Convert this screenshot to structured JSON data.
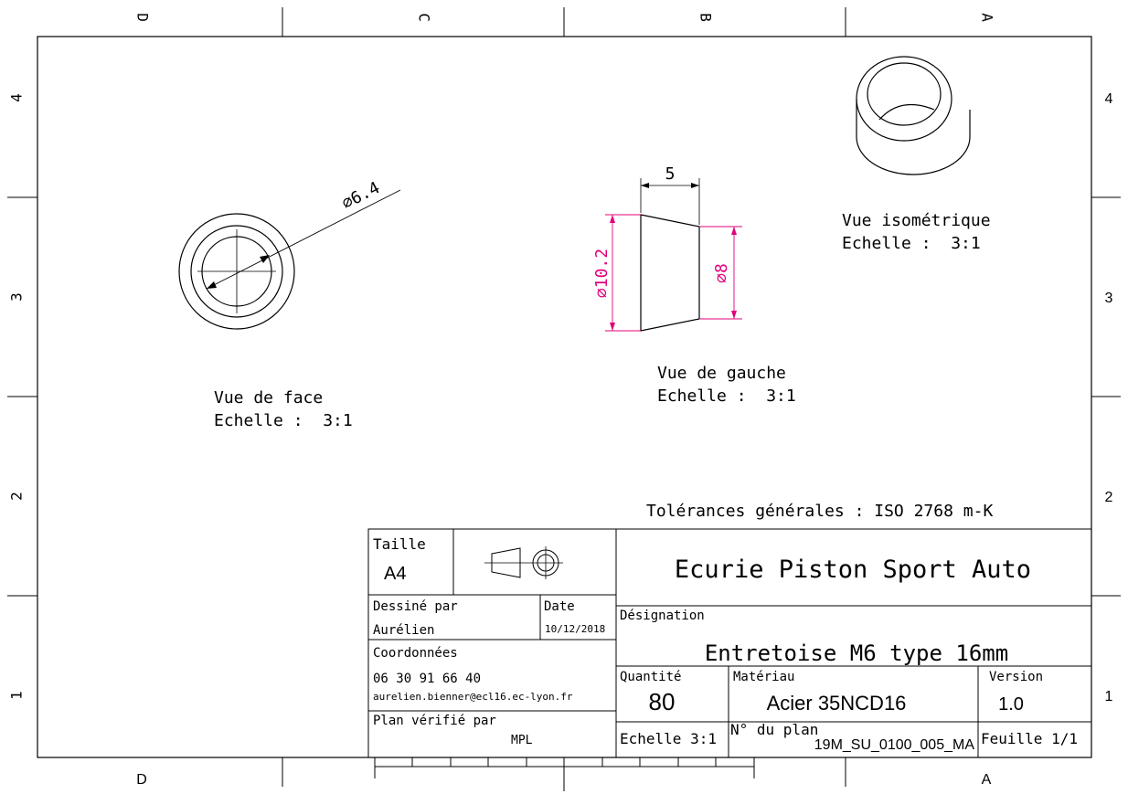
{
  "zones": {
    "top": [
      "D",
      "C",
      "B",
      "A"
    ],
    "bottom": [
      "D",
      "A"
    ],
    "left": [
      "4",
      "3",
      "2",
      "1"
    ],
    "right": [
      "4",
      "3",
      "2",
      "1"
    ]
  },
  "views": {
    "front": {
      "caption": "Vue de face",
      "scale": "Echelle :  3:1",
      "dimension": "⌀6.4"
    },
    "left": {
      "caption": "Vue de gauche",
      "scale": "Echelle :  3:1",
      "dim_length": "5",
      "dim_large": "⌀10.2",
      "dim_small": "⌀8"
    },
    "iso": {
      "caption": "Vue isométrique",
      "scale": "Echelle :  3:1"
    }
  },
  "tolerances": "Tolérances générales : ISO 2768 m-K",
  "title_block": {
    "size_label": "Taille",
    "size_value": "A4",
    "company": "Ecurie Piston Sport Auto",
    "drawn_by_label": "Dessiné par",
    "drawn_by_value": "Aurélien",
    "date_label": "Date",
    "date_value": "10/12/2018",
    "designation_label": "Désignation",
    "designation_value": "Entretoise M6 type 16mm",
    "contact_label": "Coordonnées",
    "phone": "06 30 91 66 40",
    "email": "aurelien.bienner@ecl16.ec-lyon.fr",
    "checked_label": "Plan vérifié par",
    "checked_value": "MPL",
    "quantity_label": "Quantité",
    "quantity_value": "80",
    "material_label": "Matériau",
    "material_value": "Acier 35NCD16",
    "version_label": "Version",
    "version_value": "1.0",
    "scale_value": "Echelle 3:1",
    "plan_no_label": "N° du plan",
    "plan_no_value": "19M_SU_0100_005_MA",
    "sheet_value": "Feuille 1/1"
  },
  "colors": {
    "dimension_highlight": "#e0007a",
    "line": "#000000"
  }
}
